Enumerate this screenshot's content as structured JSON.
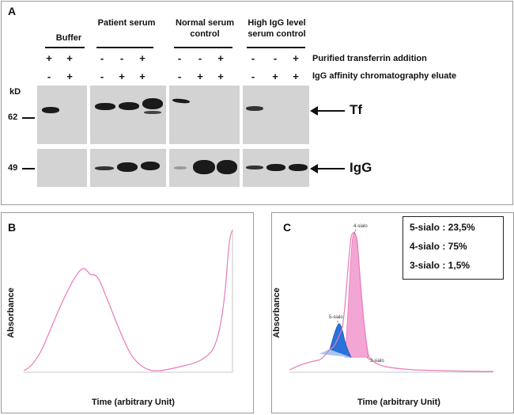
{
  "panels": {
    "a": {
      "label": "A",
      "groups": [
        "Buffer",
        "Patient serum",
        "Normal serum control",
        "High IgG level serum control"
      ],
      "row_labels": [
        "Purified transferrin addition",
        "IgG affinity chromatography eluate"
      ],
      "signs_top": [
        "+",
        "+",
        "-",
        "-",
        "+",
        "-",
        "-",
        "+",
        "-",
        "-",
        "+"
      ],
      "signs_bottom": [
        "-",
        "+",
        "-",
        "+",
        "+",
        "-",
        "+",
        "+",
        "-",
        "+",
        "+"
      ],
      "unit": "kD",
      "marker_62": "62",
      "marker_49": "49",
      "tf_label": "Tf",
      "igg_label": "IgG"
    },
    "b": {
      "label": "B",
      "ylabel": "Absorbance",
      "xlabel": "Time (arbitrary Unit)"
    },
    "c": {
      "label": "C",
      "ylabel": "Absorbance",
      "xlabel": "Time (arbitrary Unit)",
      "peak_labels": [
        "5-sialo",
        "4-sialo",
        "3-sialo"
      ],
      "legend": [
        "5-sialo : 23,5%",
        "4-sialo : 75%",
        "3-sialo : 1,5%"
      ]
    }
  },
  "colors": {
    "trace": "#e87ab8",
    "fill_pink": "#f3a6d4",
    "fill_blue": "#2a72d9",
    "blot_bg": "#d3d3d3"
  }
}
